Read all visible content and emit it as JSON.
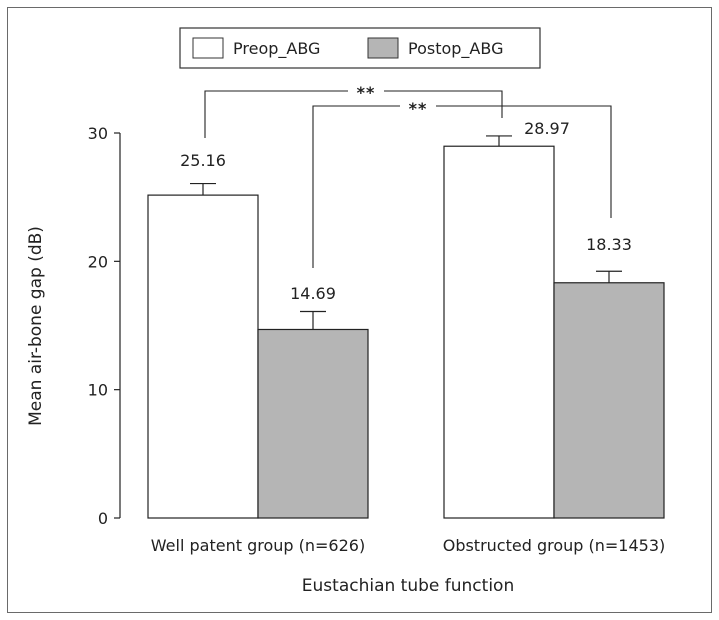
{
  "chart_data": {
    "type": "bar",
    "categories": [
      "Well patent group (n=626)",
      "Obstructed group (n=1453)"
    ],
    "series": [
      {
        "name": "Preop_ABG",
        "values": [
          25.16,
          28.97
        ],
        "error": [
          0.9,
          0.8
        ],
        "color": "#ffffff"
      },
      {
        "name": "Postop_ABG",
        "values": [
          14.69,
          18.33
        ],
        "error": [
          1.4,
          0.9
        ],
        "color": "#b5b5b5"
      }
    ],
    "value_labels": [
      [
        "25.16",
        "28.97"
      ],
      [
        "14.69",
        "18.33"
      ]
    ],
    "xlabel": "Eustachian tube function",
    "ylabel": "Mean air-bone gap (dB)",
    "ylim": [
      0,
      30
    ],
    "yticks": [
      0,
      10,
      20,
      30
    ],
    "ytick_labels": [
      "0",
      "10",
      "20",
      "30"
    ],
    "grid": false,
    "legend_position": "top-center",
    "significance": [
      {
        "label": "**",
        "from": "Well patent group (n=626) / Preop_ABG",
        "to": "Obstructed group (n=1453) / Preop_ABG"
      },
      {
        "label": "**",
        "from": "Well patent group (n=626) / Postop_ABG",
        "to": "Obstructed group (n=1453) / Postop_ABG"
      }
    ]
  }
}
